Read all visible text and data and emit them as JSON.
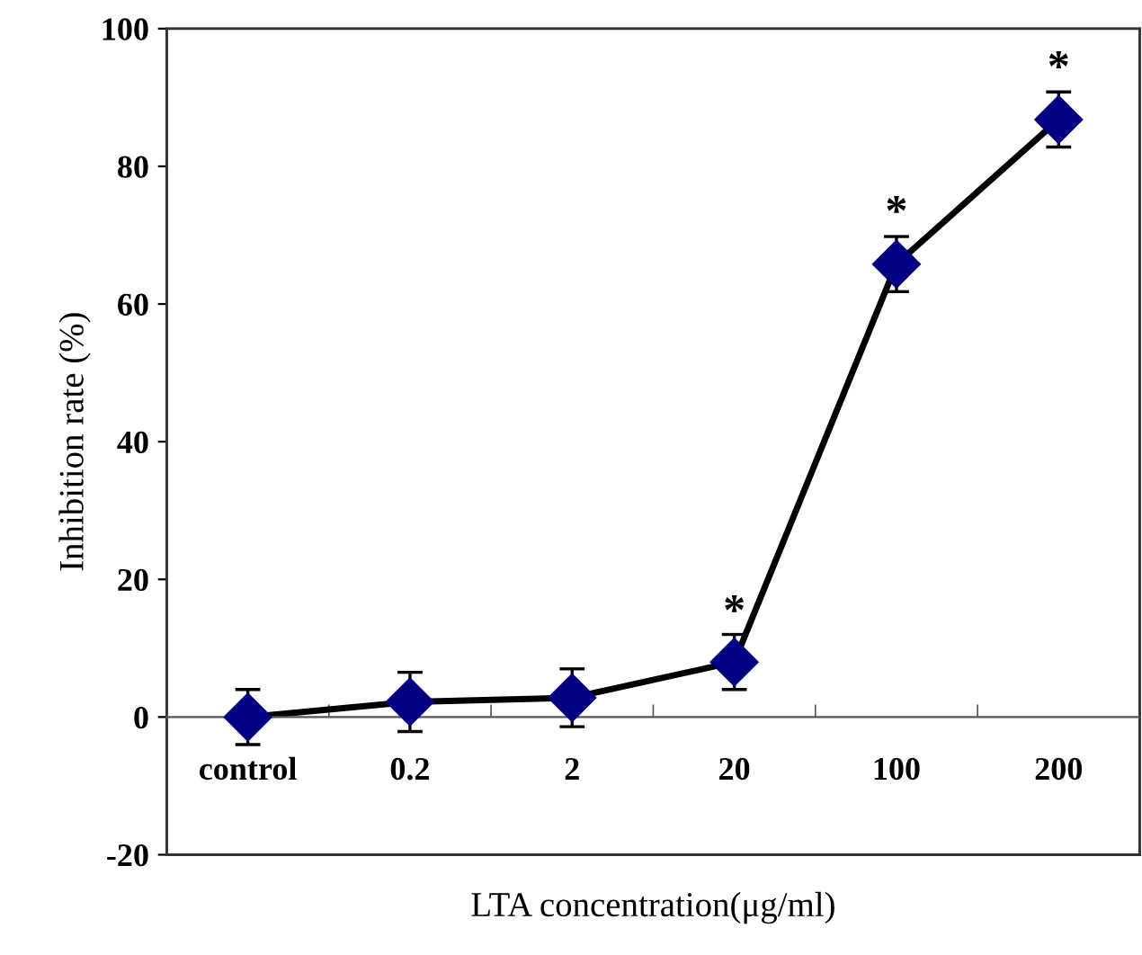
{
  "chart_data": {
    "type": "line",
    "xlabel": "LTA concentration(μg/ml)",
    "ylabel": "Inhibition rate (%)",
    "categories": [
      "control",
      "0.2",
      "2",
      "20",
      "100",
      "200"
    ],
    "series": [
      {
        "color": "#000080",
        "values": [
          0,
          2.2,
          2.8,
          8,
          65.8,
          86.8
        ],
        "errors": [
          4,
          4.3,
          4.2,
          4,
          4,
          4
        ]
      }
    ],
    "annotations": [
      {
        "text": "*",
        "x": "20",
        "y": 12
      },
      {
        "text": "*",
        "x": "100",
        "y": 70
      },
      {
        "text": "*",
        "x": "200",
        "y": 91
      }
    ],
    "ylim": [
      -20,
      100
    ],
    "yticks": [
      -20,
      0,
      20,
      40,
      60,
      80,
      100
    ],
    "marker": "diamond",
    "line_style": "solid",
    "grid": false,
    "legend": false
  }
}
